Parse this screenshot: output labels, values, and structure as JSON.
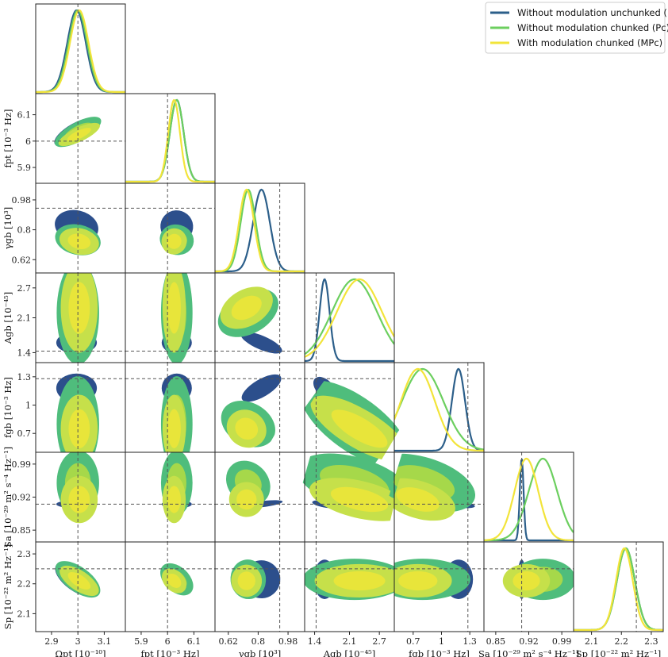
{
  "legend": {
    "entries": [
      {
        "label": "Without modulation unchunked (P)",
        "color": "#2c5f8a"
      },
      {
        "label": "Without modulation chunked (Pc)",
        "color": "#6ccf5f"
      },
      {
        "label": "With modulation chunked (MPc)",
        "color": "#f2e43a"
      }
    ]
  },
  "chart_data": {
    "type": "corner",
    "series_colors": {
      "P": "#2c5f8a",
      "Pc": "#6ccf5f",
      "MPc": "#f2e43a"
    },
    "contour_colors": {
      "P": "#2c4f8c",
      "Pc_outer": "#4fbd7c",
      "Pc_inner": "#a6d84a",
      "MPc_outer": "#c6e04a",
      "MPc_inner": "#e8e53a"
    },
    "parameters": [
      {
        "name": "Omega_pt",
        "label": "Ωpt [10⁻¹⁰]",
        "range": [
          2.84,
          3.18
        ],
        "ticks": [
          2.9,
          3.0,
          3.1
        ],
        "tick_labels": [
          "2.9",
          "3",
          "3.1"
        ],
        "true": 3.0,
        "peaks": {
          "P": 2.995,
          "Pc": 3.0,
          "MPc": 3.005
        },
        "sigmas": {
          "P": 0.035,
          "Pc": 0.035,
          "MPc": 0.035
        }
      },
      {
        "name": "f_pt",
        "label": "fpt [10⁻³ Hz]",
        "range": [
          5.84,
          6.18
        ],
        "ticks": [
          5.9,
          6.0,
          6.1
        ],
        "tick_labels": [
          "5.9",
          "6",
          "6.1"
        ],
        "true": 6.0,
        "peaks": {
          "P": 6.035,
          "Pc": 6.035,
          "MPc": 6.025
        },
        "sigmas": {
          "P": 0.026,
          "Pc": 0.026,
          "MPc": 0.022
        }
      },
      {
        "name": "gamma_gb",
        "label": "γgb [10³]",
        "range": [
          0.54,
          1.08
        ],
        "ticks": [
          0.62,
          0.8,
          0.98
        ],
        "tick_labels": [
          "0.62",
          "0.8",
          "0.98"
        ],
        "true": 0.93,
        "peaks": {
          "P": 0.82,
          "Pc": 0.74,
          "MPc": 0.73
        },
        "sigmas": {
          "P": 0.05,
          "Pc": 0.045,
          "MPc": 0.045
        }
      },
      {
        "name": "A_gb",
        "label": "Agb [10⁻⁴⁵]",
        "range": [
          1.2,
          3.0
        ],
        "ticks": [
          1.4,
          2.1,
          2.7
        ],
        "tick_labels": [
          "1.4",
          "2.1",
          "2.7"
        ],
        "true": 1.43,
        "peaks": {
          "P": 1.6,
          "Pc": 2.2,
          "MPc": 2.3
        },
        "sigmas": {
          "P": 0.1,
          "Pc": 0.45,
          "MPc": 0.45
        }
      },
      {
        "name": "f_gb",
        "label": "fgb [10⁻³ Hz]",
        "range": [
          0.5,
          1.45
        ],
        "ticks": [
          0.7,
          1.0,
          1.3
        ],
        "tick_labels": [
          "0.7",
          "1",
          "1.3"
        ],
        "true": 1.28,
        "peaks": {
          "P": 1.18,
          "Pc": 0.8,
          "MPc": 0.75
        },
        "sigmas": {
          "P": 0.07,
          "Pc": 0.22,
          "MPc": 0.18
        }
      },
      {
        "name": "S_a",
        "label": "Sa [10⁻²⁹ m² s⁻⁴ Hz⁻¹]",
        "range": [
          0.825,
          1.015
        ],
        "ticks": [
          0.85,
          0.92,
          0.99
        ],
        "tick_labels": [
          "0.85",
          "0.92",
          "0.99"
        ],
        "true": 0.905,
        "peaks": {
          "P": 0.905,
          "Pc": 0.95,
          "MPc": 0.915
        },
        "sigmas": {
          "P": 0.004,
          "Pc": 0.03,
          "MPc": 0.025
        }
      },
      {
        "name": "S_p",
        "label": "Sp [10⁻²² m² Hz⁻¹]",
        "range": [
          2.04,
          2.34
        ],
        "ticks": [
          2.1,
          2.2,
          2.3
        ],
        "tick_labels": [
          "2.1",
          "2.2",
          "2.3"
        ],
        "true": 2.25,
        "peaks": {
          "P": 2.215,
          "Pc": 2.215,
          "MPc": 2.21
        },
        "sigmas": {
          "P": 0.03,
          "Pc": 0.03,
          "MPc": 0.028
        }
      }
    ],
    "y_tick_parameters": [
      1,
      2,
      3,
      4,
      5,
      6
    ]
  }
}
